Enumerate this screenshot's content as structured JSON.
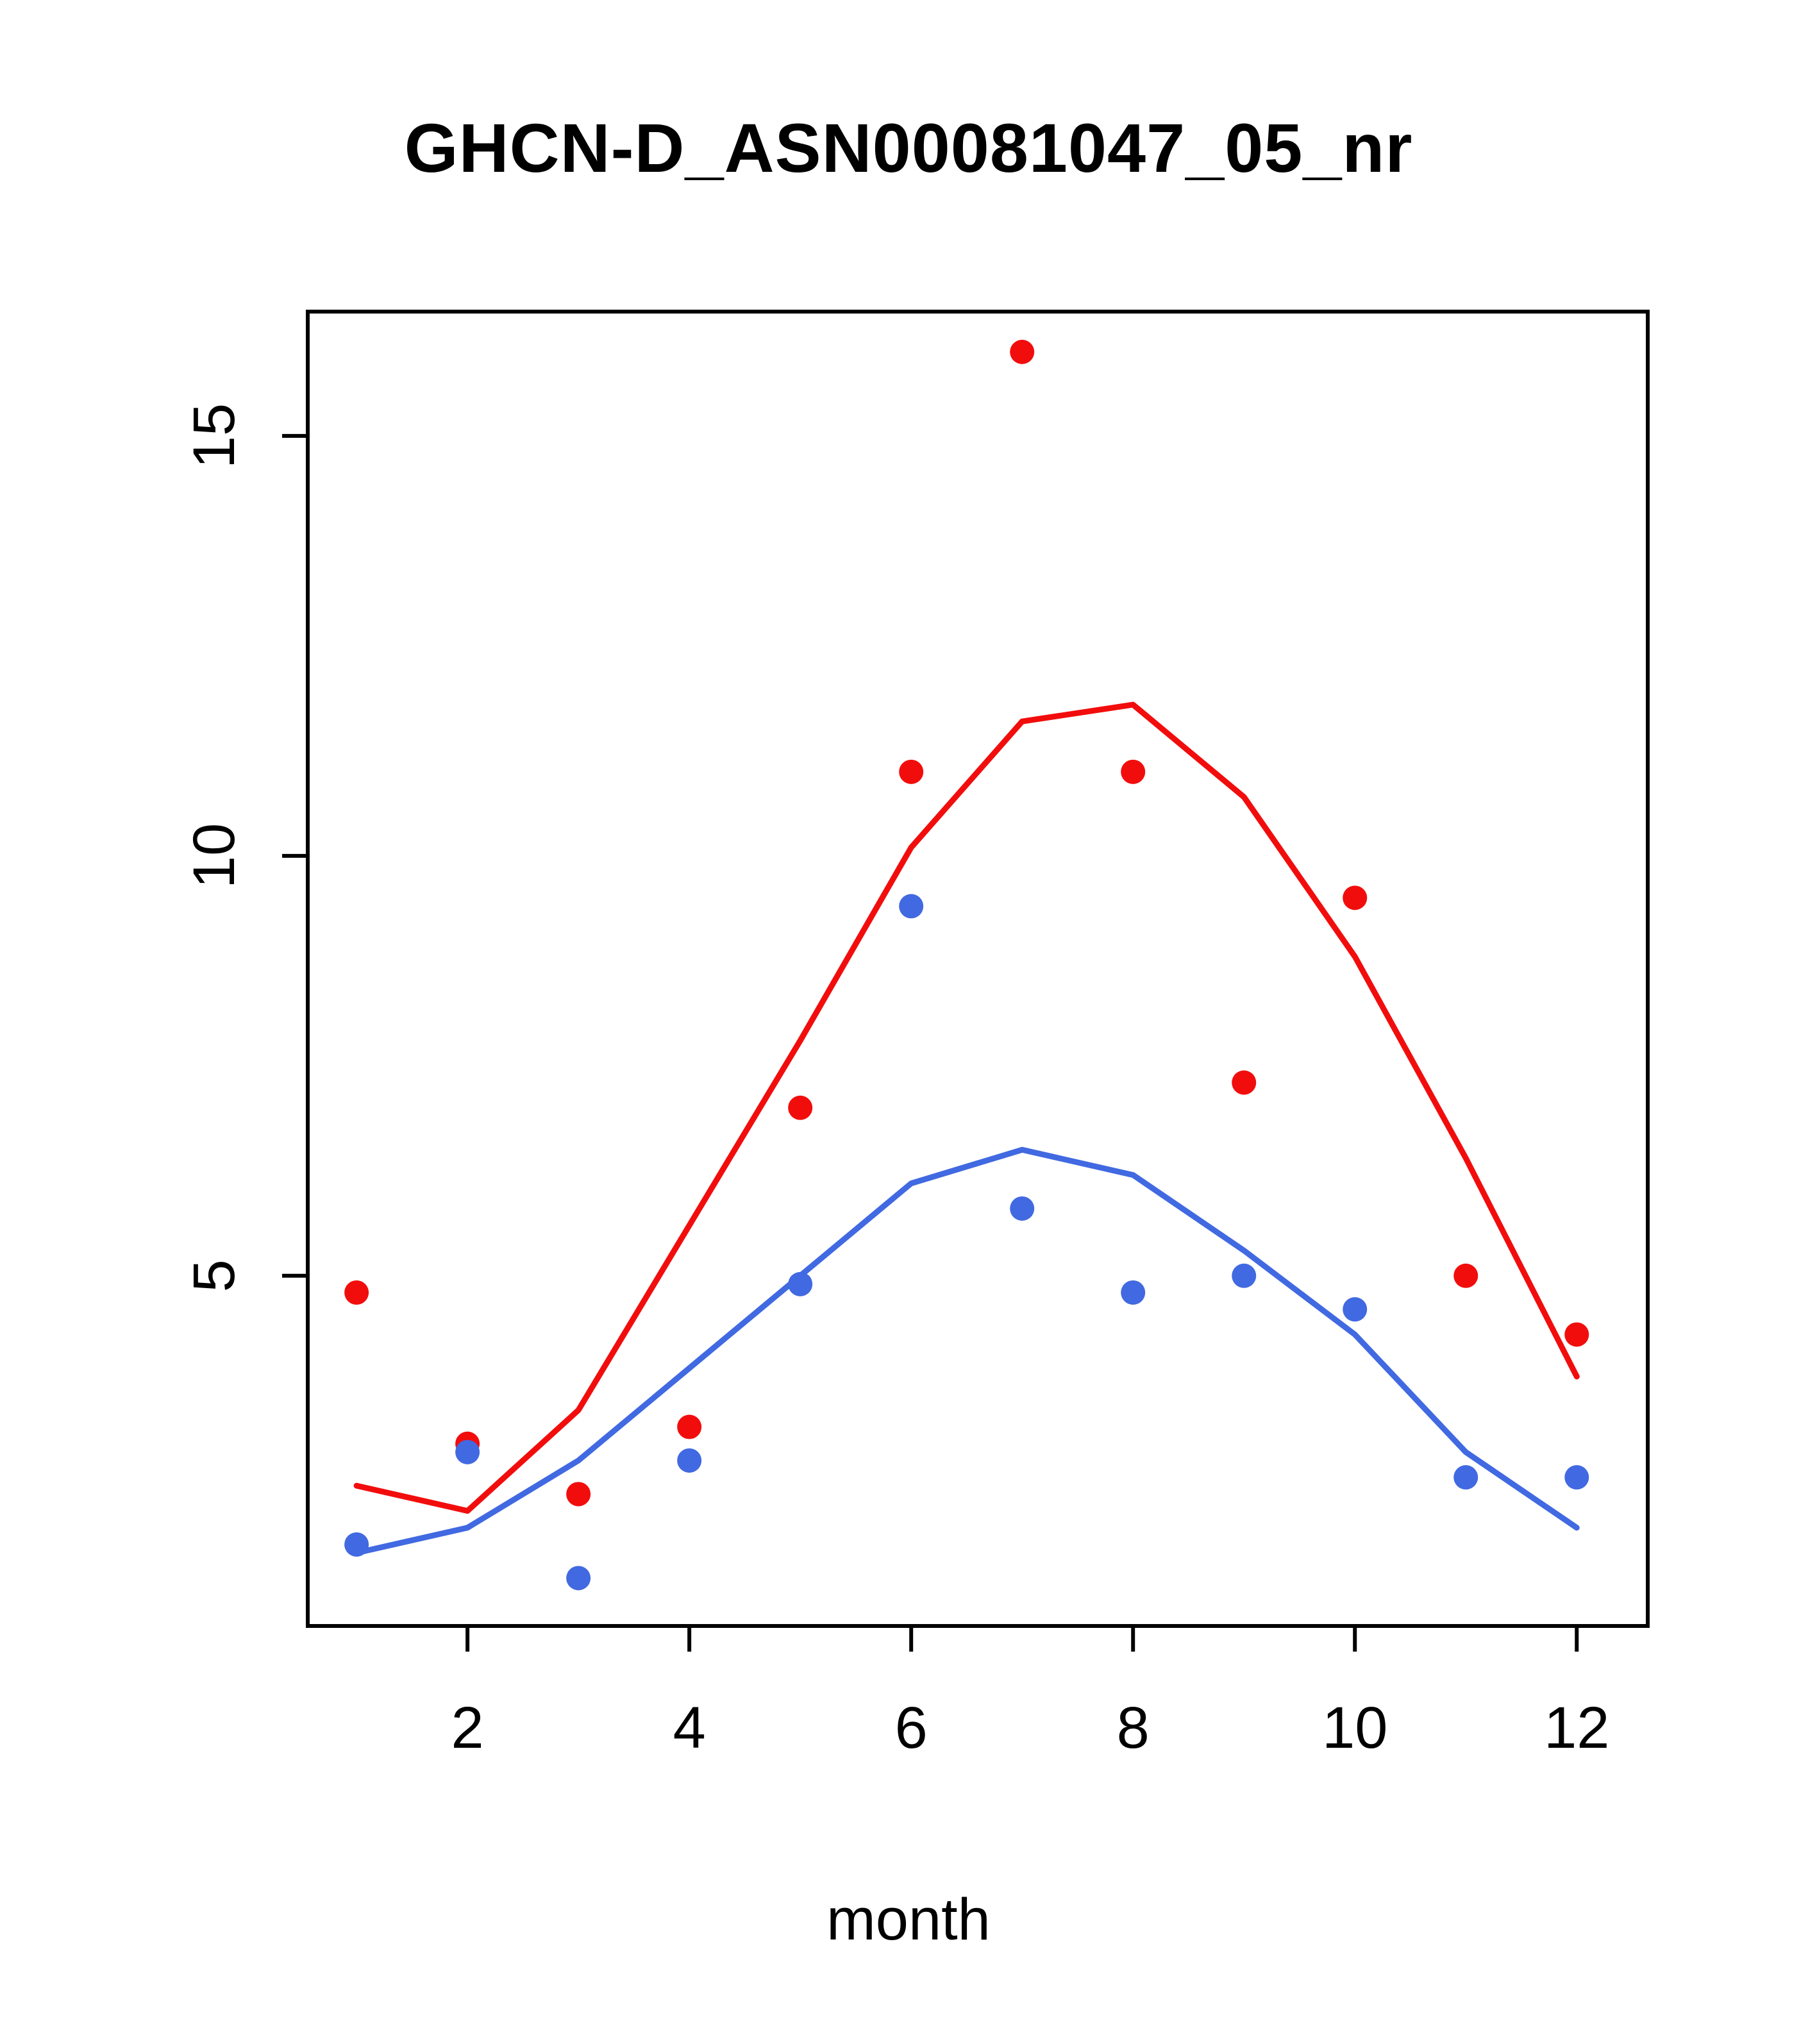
{
  "colors": {
    "red": "#f20d0d",
    "blue": "#4169e1",
    "axis": "#000000",
    "background": "#ffffff"
  },
  "chart_data": {
    "type": "scatter",
    "title": "GHCN-D_ASN00081047_05_nr",
    "xlabel": "month",
    "ylabel": "",
    "x": [
      1,
      2,
      3,
      4,
      5,
      6,
      7,
      8,
      9,
      10,
      11,
      12
    ],
    "series": [
      {
        "name": "red-smooth-line",
        "kind": "line",
        "color": "red",
        "values": [
          2.5,
          2.2,
          3.4,
          5.6,
          7.8,
          10.1,
          11.6,
          11.8,
          10.7,
          8.8,
          6.4,
          3.8
        ]
      },
      {
        "name": "blue-smooth-line",
        "kind": "line",
        "color": "blue",
        "values": [
          1.7,
          2.0,
          2.8,
          3.9,
          5.0,
          6.1,
          6.5,
          6.2,
          5.3,
          4.3,
          2.9,
          2.0
        ]
      },
      {
        "name": "red-points",
        "kind": "points",
        "color": "red",
        "values": [
          4.8,
          3.0,
          2.4,
          3.2,
          7.0,
          11.0,
          16.0,
          11.0,
          7.3,
          9.5,
          5.0,
          4.3
        ]
      },
      {
        "name": "blue-points",
        "kind": "points",
        "color": "blue",
        "values": [
          1.8,
          2.9,
          1.4,
          2.8,
          4.9,
          9.4,
          5.8,
          4.8,
          5.0,
          4.6,
          2.6,
          2.6
        ]
      }
    ],
    "xlim": [
      0.56,
      12.64
    ],
    "ylim": [
      0.83,
      16.48
    ],
    "xticks": [
      2,
      4,
      6,
      8,
      10,
      12
    ],
    "yticks": [
      5,
      10,
      15
    ],
    "grid": false,
    "legend": "none"
  }
}
